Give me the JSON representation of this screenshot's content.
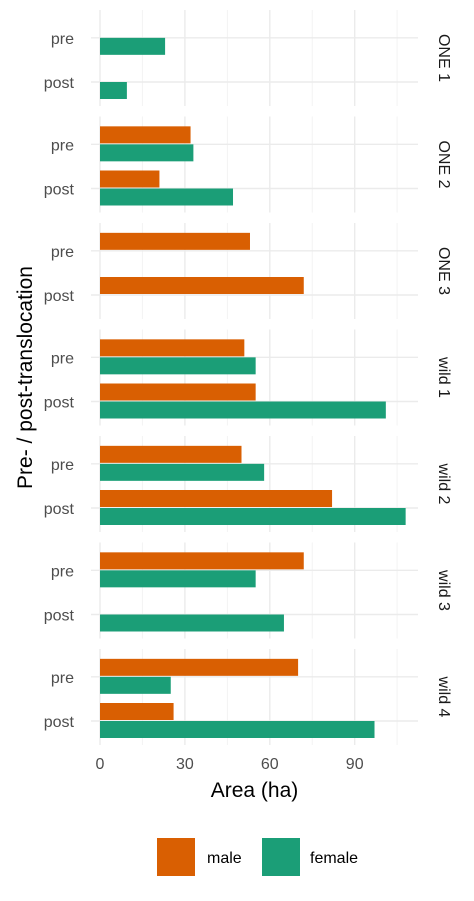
{
  "chart_data": {
    "type": "bar",
    "orientation": "horizontal",
    "xlabel": "Area (ha)",
    "ylabel": "Pre- / post-translocation",
    "xlim": [
      0,
      110
    ],
    "xticks": [
      0,
      30,
      60,
      90
    ],
    "xtick_labels": [
      "0",
      "30",
      "60",
      "90"
    ],
    "categories": [
      "pre",
      "post"
    ],
    "grid": true,
    "legend_position": "bottom",
    "series": [
      {
        "name": "male",
        "color": "#D95F02"
      },
      {
        "name": "female",
        "color": "#1B9E77"
      }
    ],
    "panels": [
      {
        "label": "ONE 1",
        "values": {
          "male": [
            null,
            null
          ],
          "female": [
            23,
            9.5
          ]
        }
      },
      {
        "label": "ONE 2",
        "values": {
          "male": [
            32,
            21
          ],
          "female": [
            33,
            47
          ]
        }
      },
      {
        "label": "ONE 3",
        "values": {
          "male": [
            53,
            72
          ],
          "female": [
            null,
            null
          ]
        }
      },
      {
        "label": "wild 1",
        "values": {
          "male": [
            51,
            55
          ],
          "female": [
            55,
            101
          ]
        }
      },
      {
        "label": "wild 2",
        "values": {
          "male": [
            50,
            82
          ],
          "female": [
            58,
            108
          ]
        }
      },
      {
        "label": "wild 3",
        "values": {
          "male": [
            72,
            null
          ],
          "female": [
            55,
            65
          ]
        }
      },
      {
        "label": "wild 4",
        "values": {
          "male": [
            70,
            26
          ],
          "female": [
            25,
            97
          ]
        }
      }
    ]
  }
}
